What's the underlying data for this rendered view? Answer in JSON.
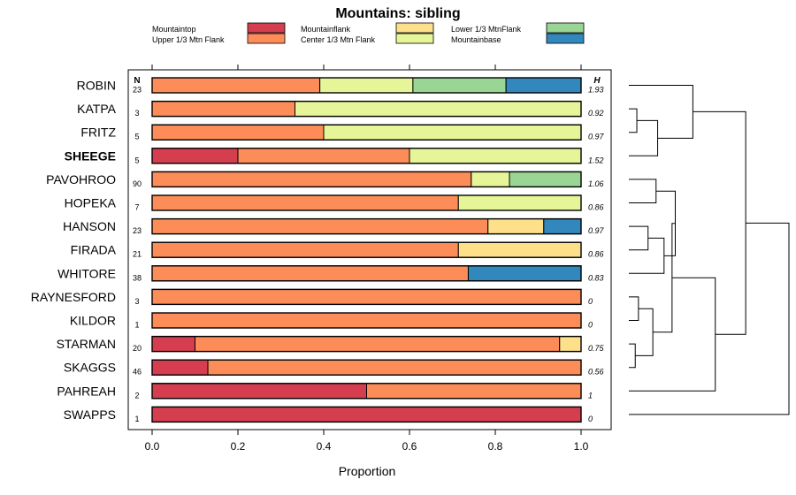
{
  "chart_data": {
    "type": "bar",
    "stacked": true,
    "orientation": "horizontal",
    "title": "Mountains: sibling",
    "xlabel": "Proportion",
    "xlim": [
      0,
      1
    ],
    "xticks": [
      "0.0",
      "0.2",
      "0.4",
      "0.6",
      "0.8",
      "1.0"
    ],
    "n_header": "N",
    "h_header": "H",
    "highlight": "SHEEGE",
    "legend": [
      {
        "name": "Mountaintop",
        "color": "#d53e4f"
      },
      {
        "name": "Upper 1/3 Mtn Flank",
        "color": "#fc8d59"
      },
      {
        "name": "Mountainflank",
        "color": "#fee08b"
      },
      {
        "name": "Center 1/3 Mtn Flank",
        "color": "#e6f598"
      },
      {
        "name": "Lower 1/3 MtnFlank",
        "color": "#99d594"
      },
      {
        "name": "Mountainbase",
        "color": "#3288bd"
      }
    ],
    "series_order": [
      "Mountaintop",
      "Upper 1/3 Mtn Flank",
      "Mountainflank",
      "Center 1/3 Mtn Flank",
      "Lower 1/3 MtnFlank",
      "Mountainbase"
    ],
    "rows": [
      {
        "name": "ROBIN",
        "n": "23",
        "h": "1.93",
        "values": [
          0,
          0.391,
          0,
          0.217,
          0.217,
          0.175
        ]
      },
      {
        "name": "KATPA",
        "n": "3",
        "h": "0.92",
        "values": [
          0,
          0.333,
          0,
          0.667,
          0,
          0
        ]
      },
      {
        "name": "FRITZ",
        "n": "5",
        "h": "0.97",
        "values": [
          0,
          0.4,
          0,
          0.6,
          0,
          0
        ]
      },
      {
        "name": "SHEEGE",
        "n": "5",
        "h": "1.52",
        "values": [
          0.2,
          0.4,
          0,
          0.4,
          0,
          0
        ]
      },
      {
        "name": "PAVOHROO",
        "n": "90",
        "h": "1.06",
        "values": [
          0,
          0.744,
          0,
          0.089,
          0.167,
          0
        ]
      },
      {
        "name": "HOPEKA",
        "n": "7",
        "h": "0.86",
        "values": [
          0,
          0.714,
          0,
          0.286,
          0,
          0
        ]
      },
      {
        "name": "HANSON",
        "n": "23",
        "h": "0.97",
        "values": [
          0,
          0.783,
          0.13,
          0,
          0,
          0.087
        ]
      },
      {
        "name": "FIRADA",
        "n": "21",
        "h": "0.86",
        "values": [
          0,
          0.714,
          0.286,
          0,
          0,
          0
        ]
      },
      {
        "name": "WHITORE",
        "n": "38",
        "h": "0.83",
        "values": [
          0,
          0.737,
          0,
          0,
          0,
          0.263
        ]
      },
      {
        "name": "RAYNESFORD",
        "n": "3",
        "h": "0",
        "values": [
          0,
          1,
          0,
          0,
          0,
          0
        ]
      },
      {
        "name": "KILDOR",
        "n": "1",
        "h": "0",
        "values": [
          0,
          1,
          0,
          0,
          0,
          0
        ]
      },
      {
        "name": "STARMAN",
        "n": "20",
        "h": "0.75",
        "values": [
          0.1,
          0.85,
          0.05,
          0,
          0,
          0
        ]
      },
      {
        "name": "SKAGGS",
        "n": "46",
        "h": "0.56",
        "values": [
          0.13,
          0.87,
          0,
          0,
          0,
          0
        ]
      },
      {
        "name": "PAHREAH",
        "n": "2",
        "h": "1",
        "values": [
          0.5,
          0.5,
          0,
          0,
          0,
          0
        ]
      },
      {
        "name": "SWAPPS",
        "n": "1",
        "h": "0",
        "values": [
          1,
          0,
          0,
          0,
          0,
          0
        ]
      }
    ],
    "dendrogram": [
      {
        "a": "KATPA",
        "b": "FRITZ",
        "height": 0.05
      },
      {
        "a": "KATPA+FRITZ",
        "b": "SHEEGE",
        "height": 0.18
      },
      {
        "a": "ROBIN",
        "b": "KATPA+FRITZ+SHEEGE",
        "height": 0.4
      },
      {
        "a": "PAVOHROO",
        "b": "HOPEKA",
        "height": 0.17
      },
      {
        "a": "HANSON",
        "b": "FIRADA",
        "height": 0.12
      },
      {
        "a": "HANSON+FIRADA",
        "b": "WHITORE",
        "height": 0.22
      },
      {
        "a": "PAVOHROO+HOPEKA",
        "b": "HANSON+FIRADA+WHITORE",
        "height": 0.29
      },
      {
        "a": "RAYNESFORD",
        "b": "KILDOR",
        "height": 0.06
      },
      {
        "a": "STARMAN",
        "b": "SKAGGS",
        "height": 0.04
      },
      {
        "a": "RAYNESFORD+KILDOR",
        "b": "STARMAN+SKAGGS",
        "height": 0.15
      },
      {
        "a": "PAVOHROO..WHITORE",
        "b": "RAYNESFORD..SKAGGS",
        "height": 0.27
      },
      {
        "a": "PAVOHROO..SKAGGS",
        "b": "PAHREAH",
        "height": 0.54
      },
      {
        "a": "ROBIN..SHEEGE",
        "b": "PAVOHROO..PAHREAH",
        "height": 0.73
      },
      {
        "a": "ROBIN..PAHREAH",
        "b": "SWAPPS",
        "height": 1.0
      }
    ]
  }
}
